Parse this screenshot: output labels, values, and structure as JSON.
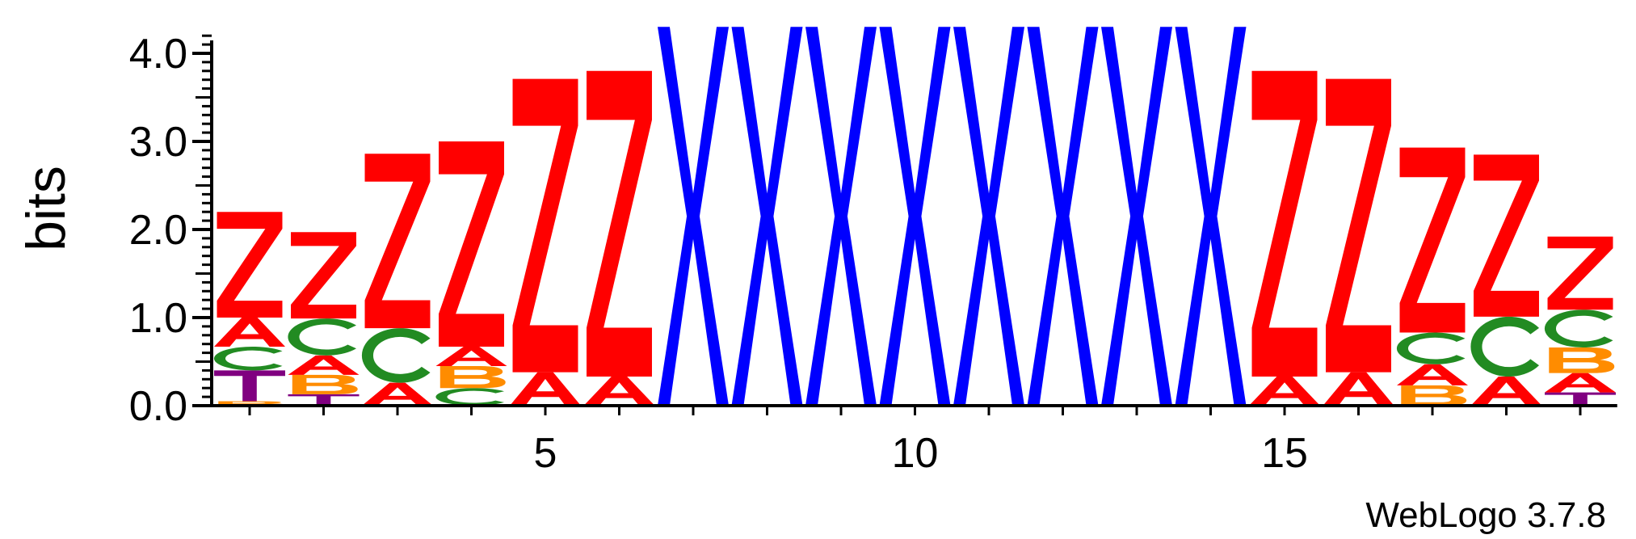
{
  "chart_data": {
    "type": "sequence-logo",
    "ylabel": "bits",
    "ylim": [
      0,
      4
    ],
    "y_ticks": [
      "0.0",
      "1.0",
      "2.0",
      "3.0",
      "4.0"
    ],
    "x_ticks": [
      5,
      10,
      15
    ],
    "x_range": [
      1,
      19
    ],
    "grid": false,
    "colors": {
      "Z": "#ff0000",
      "X": "#0000ff",
      "A": "#ff0000",
      "C": "#228b22",
      "T": "#800080",
      "B": "#ff8c00"
    },
    "positions": [
      {
        "pos": 1,
        "stack": [
          [
            "B",
            0.05
          ],
          [
            "T",
            0.35
          ],
          [
            "C",
            0.27
          ],
          [
            "A",
            0.33
          ],
          [
            "Z",
            1.2
          ]
        ]
      },
      {
        "pos": 2,
        "stack": [
          [
            "T",
            0.13
          ],
          [
            "B",
            0.22
          ],
          [
            "A",
            0.22
          ],
          [
            "C",
            0.42
          ],
          [
            "Z",
            0.98
          ]
        ]
      },
      {
        "pos": 3,
        "stack": [
          [
            "A",
            0.26
          ],
          [
            "C",
            0.62
          ],
          [
            "Z",
            1.98
          ]
        ]
      },
      {
        "pos": 4,
        "stack": [
          [
            "C",
            0.2
          ],
          [
            "B",
            0.25
          ],
          [
            "A",
            0.22
          ],
          [
            "Z",
            2.33
          ]
        ]
      },
      {
        "pos": 5,
        "stack": [
          [
            "A",
            0.38
          ],
          [
            "Z",
            3.33
          ]
        ]
      },
      {
        "pos": 6,
        "stack": [
          [
            "A",
            0.33
          ],
          [
            "Z",
            3.47
          ]
        ]
      },
      {
        "pos": 7,
        "stack": [
          [
            "X",
            4.3
          ]
        ]
      },
      {
        "pos": 8,
        "stack": [
          [
            "X",
            4.3
          ]
        ]
      },
      {
        "pos": 9,
        "stack": [
          [
            "X",
            4.3
          ]
        ]
      },
      {
        "pos": 10,
        "stack": [
          [
            "X",
            4.3
          ]
        ]
      },
      {
        "pos": 11,
        "stack": [
          [
            "X",
            4.3
          ]
        ]
      },
      {
        "pos": 12,
        "stack": [
          [
            "X",
            4.3
          ]
        ]
      },
      {
        "pos": 13,
        "stack": [
          [
            "X",
            4.3
          ]
        ]
      },
      {
        "pos": 14,
        "stack": [
          [
            "X",
            4.3
          ]
        ]
      },
      {
        "pos": 15,
        "stack": [
          [
            "A",
            0.33
          ],
          [
            "Z",
            3.47
          ]
        ]
      },
      {
        "pos": 16,
        "stack": [
          [
            "A",
            0.38
          ],
          [
            "Z",
            3.33
          ]
        ]
      },
      {
        "pos": 17,
        "stack": [
          [
            "B",
            0.23
          ],
          [
            "A",
            0.24
          ],
          [
            "C",
            0.36
          ],
          [
            "Z",
            2.1
          ]
        ]
      },
      {
        "pos": 18,
        "stack": [
          [
            "A",
            0.33
          ],
          [
            "C",
            0.68
          ],
          [
            "Z",
            1.84
          ]
        ]
      },
      {
        "pos": 19,
        "stack": [
          [
            "T",
            0.15
          ],
          [
            "A",
            0.22
          ],
          [
            "B",
            0.29
          ],
          [
            "C",
            0.43
          ],
          [
            "Z",
            0.83
          ]
        ]
      }
    ]
  },
  "footer": {
    "credit": "WebLogo 3.7.8"
  }
}
